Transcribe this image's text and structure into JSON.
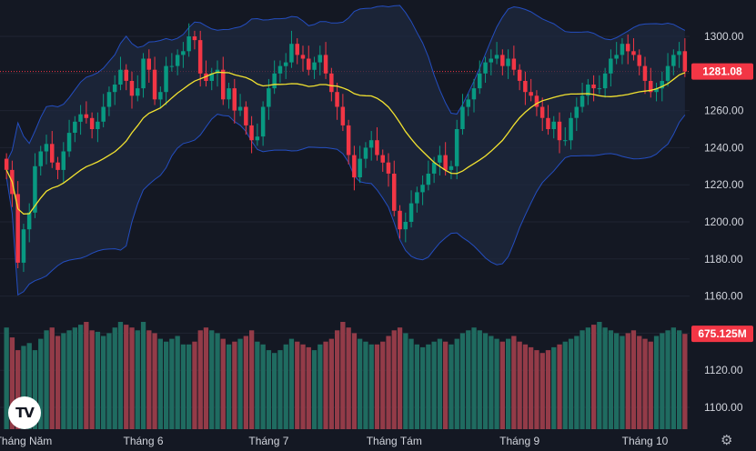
{
  "chart_data": {
    "type": "candlestick",
    "price_axis": {
      "ticks": [
        1100,
        1120,
        1140,
        1160,
        1180,
        1200,
        1220,
        1240,
        1260,
        1280,
        1300
      ],
      "tick_labels": [
        "1100.00",
        "1120.00",
        "1140.00",
        "1160.00",
        "1180.00",
        "1200.00",
        "1220.00",
        "1240.00",
        "1260.00",
        "1280.00",
        "1300.00"
      ],
      "range": [
        1092,
        1320
      ]
    },
    "x_axis": {
      "labels": [
        {
          "text": "Tháng Năm",
          "index": 3
        },
        {
          "text": "Tháng 6",
          "index": 24
        },
        {
          "text": "Tháng 7",
          "index": 46
        },
        {
          "text": "Tháng Tám",
          "index": 68
        },
        {
          "text": "Tháng 9",
          "index": 90
        },
        {
          "text": "Tháng 10",
          "index": 112
        }
      ]
    },
    "last_price": {
      "value": 1281.08,
      "label": "1281.08",
      "color": "#f23645"
    },
    "last_volume": {
      "label": "675.125M",
      "color": "#f23645"
    },
    "colors": {
      "up": "#089981",
      "down": "#f23645",
      "ma": "#f2e230",
      "band": "#2962ff",
      "band_fill": "#1e2a40",
      "vol_up": "#1f6b60",
      "vol_down": "#933b48"
    },
    "close": [
      1228,
      1215,
      1178,
      1196,
      1205,
      1230,
      1238,
      1242,
      1232,
      1228,
      1238,
      1248,
      1254,
      1258,
      1256,
      1250,
      1254,
      1262,
      1270,
      1274,
      1282,
      1276,
      1268,
      1272,
      1288,
      1282,
      1266,
      1270,
      1284,
      1284,
      1290,
      1292,
      1300,
      1298,
      1280,
      1276,
      1280,
      1282,
      1266,
      1272,
      1260,
      1262,
      1252,
      1244,
      1246,
      1262,
      1272,
      1280,
      1284,
      1286,
      1296,
      1290,
      1288,
      1282,
      1286,
      1290,
      1280,
      1270,
      1262,
      1252,
      1236,
      1224,
      1234,
      1240,
      1244,
      1236,
      1232,
      1226,
      1206,
      1196,
      1200,
      1210,
      1216,
      1220,
      1226,
      1232,
      1236,
      1228,
      1230,
      1250,
      1262,
      1266,
      1272,
      1280,
      1286,
      1288,
      1290,
      1284,
      1288,
      1282,
      1276,
      1270,
      1268,
      1262,
      1256,
      1250,
      1254,
      1244,
      1244,
      1256,
      1262,
      1268,
      1274,
      1272,
      1272,
      1280,
      1288,
      1290,
      1296,
      1292,
      1290,
      1284,
      1276,
      1270,
      1272,
      1276,
      1284,
      1290,
      1292,
      1281.08
    ],
    "volume": [
      720,
      650,
      560,
      590,
      610,
      560,
      640,
      700,
      720,
      660,
      680,
      700,
      720,
      740,
      760,
      700,
      690,
      660,
      680,
      720,
      760,
      740,
      720,
      700,
      760,
      700,
      680,
      640,
      620,
      640,
      660,
      600,
      600,
      620,
      700,
      720,
      700,
      680,
      640,
      600,
      620,
      640,
      660,
      700,
      620,
      600,
      560,
      540,
      560,
      600,
      640,
      620,
      600,
      580,
      560,
      600,
      620,
      640,
      700,
      760,
      720,
      680,
      640,
      620,
      600,
      600,
      620,
      660,
      700,
      720,
      680,
      640,
      600,
      580,
      600,
      620,
      640,
      620,
      600,
      640,
      680,
      700,
      720,
      700,
      680,
      660,
      640,
      620,
      640,
      660,
      620,
      600,
      580,
      560,
      540,
      560,
      580,
      600,
      620,
      640,
      660,
      700,
      720,
      740,
      760,
      720,
      700,
      680,
      660,
      680,
      700,
      660,
      640,
      620,
      660,
      680,
      700,
      720,
      700,
      675.125
    ]
  }
}
